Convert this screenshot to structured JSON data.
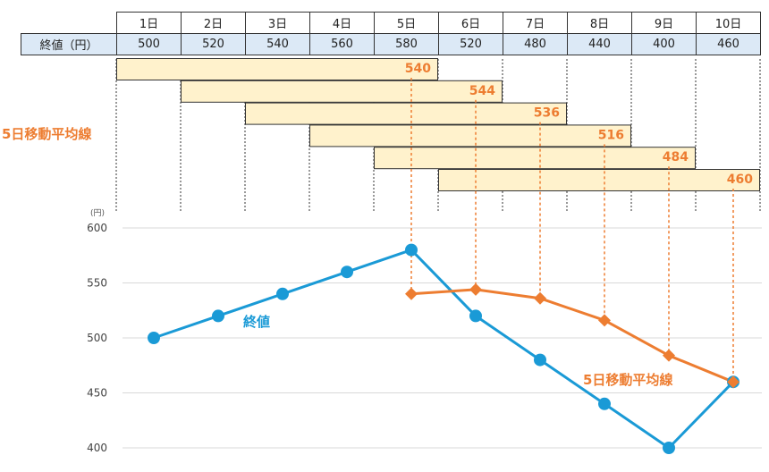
{
  "table": {
    "row_label": "終値（円）",
    "days": [
      "1日",
      "2日",
      "3日",
      "4日",
      "5日",
      "6日",
      "7日",
      "8日",
      "9日",
      "10日"
    ],
    "closes": [
      "500",
      "520",
      "540",
      "560",
      "580",
      "520",
      "480",
      "440",
      "400",
      "460"
    ]
  },
  "ma_side_label": "5日移動平均線",
  "colors": {
    "close": "#1a9ad6",
    "ma": "#ed7d31",
    "ma_box": "#fff2cc"
  },
  "chart_data": {
    "type": "line",
    "title": "",
    "xlabel": "",
    "ylabel": "(円)",
    "categories": [
      "1日",
      "2日",
      "3日",
      "4日",
      "5日",
      "6日",
      "7日",
      "8日",
      "9日",
      "10日"
    ],
    "ylim": [
      400,
      600
    ],
    "yticks": [
      "600",
      "550",
      "500",
      "450",
      "400"
    ],
    "grid": true,
    "series": [
      {
        "name": "終値",
        "values": [
          500,
          520,
          540,
          560,
          580,
          520,
          480,
          440,
          400,
          460
        ]
      },
      {
        "name": "5日移動平均線",
        "values": [
          null,
          null,
          null,
          null,
          540,
          544,
          536,
          516,
          484,
          460
        ]
      }
    ],
    "ma_boxes": [
      {
        "start": 0,
        "end": 4,
        "label": "540"
      },
      {
        "start": 1,
        "end": 5,
        "label": "544"
      },
      {
        "start": 2,
        "end": 6,
        "label": "536"
      },
      {
        "start": 3,
        "end": 7,
        "label": "516"
      },
      {
        "start": 4,
        "end": 8,
        "label": "484"
      },
      {
        "start": 5,
        "end": 9,
        "label": "460"
      }
    ]
  }
}
